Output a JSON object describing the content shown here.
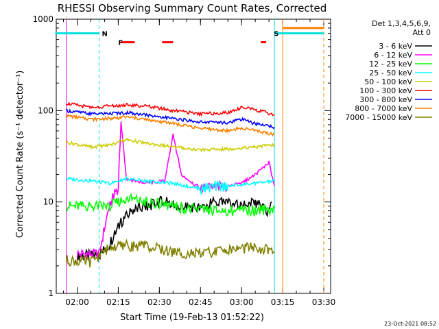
{
  "chart_data": {
    "type": "line",
    "title": "RHESSI Observing Summary Count Rates, Corrected",
    "xlabel": "Start Time (19-Feb-13 01:52:22)",
    "ylabel": "Corrected Count Rate (s⁻¹ detector⁻¹)",
    "y_scale": "log",
    "ylim": [
      1,
      1000
    ],
    "y_ticks": [
      {
        "value": 1,
        "label": "1"
      },
      {
        "value": 10,
        "label": "10"
      },
      {
        "value": 100,
        "label": "100"
      },
      {
        "value": 1000,
        "label": "1000"
      }
    ],
    "xlim": [
      "01:52:22",
      "03:32:30"
    ],
    "x_ticks": [
      "02:00",
      "02:15",
      "02:30",
      "02:45",
      "03:00",
      "03:15",
      "03:30"
    ],
    "legend_header": [
      "Det 1,3,4,5,6,9,",
      "Att 0"
    ],
    "legend_position": "top-right",
    "timestamp": "23-Oct-2021 08:52",
    "series": [
      {
        "name": "3 - 6 keV",
        "color": "#000000",
        "points": [
          [
            "02:00",
            2.6
          ],
          [
            "02:08",
            2.6
          ],
          [
            "02:12",
            3.5
          ],
          [
            "02:16",
            6
          ],
          [
            "02:20",
            8
          ],
          [
            "02:26",
            9
          ],
          [
            "02:32",
            10.5
          ],
          [
            "02:36",
            8.5
          ],
          [
            "02:40",
            9
          ],
          [
            "02:45",
            8.5
          ],
          [
            "02:50",
            10
          ],
          [
            "02:55",
            9.5
          ],
          [
            "03:00",
            9
          ],
          [
            "03:05",
            10
          ],
          [
            "03:10",
            7.5
          ],
          [
            "03:11",
            10
          ]
        ]
      },
      {
        "name": "6 - 12 keV",
        "color": "#ff00ff",
        "points": [
          [
            "02:00",
            2.7
          ],
          [
            "02:08",
            2.7
          ],
          [
            "02:12",
            10
          ],
          [
            "02:15",
            14
          ],
          [
            "02:16",
            75
          ],
          [
            "02:18",
            18
          ],
          [
            "02:25",
            16
          ],
          [
            "02:32",
            17
          ],
          [
            "02:35",
            55
          ],
          [
            "02:38",
            20
          ],
          [
            "02:45",
            14
          ],
          [
            "02:55",
            15
          ],
          [
            "03:00",
            16
          ],
          [
            "03:05",
            20
          ],
          [
            "03:10",
            27
          ],
          [
            "03:12",
            15
          ]
        ]
      },
      {
        "name": "12 - 25 keV",
        "color": "#00ff00",
        "points": [
          [
            "01:56",
            9
          ],
          [
            "02:05",
            9
          ],
          [
            "02:12",
            9
          ],
          [
            "02:18",
            11
          ],
          [
            "02:25",
            10
          ],
          [
            "02:35",
            9
          ],
          [
            "02:45",
            8
          ],
          [
            "02:55",
            8
          ],
          [
            "03:05",
            8
          ],
          [
            "03:12",
            8.5
          ]
        ]
      },
      {
        "name": "25 - 50 keV",
        "color": "#00ffff",
        "points": [
          [
            "01:56",
            18
          ],
          [
            "02:05",
            17
          ],
          [
            "02:12",
            16
          ],
          [
            "02:18",
            18
          ],
          [
            "02:25",
            17
          ],
          [
            "02:35",
            16
          ],
          [
            "02:45",
            14
          ],
          [
            "02:55",
            15
          ],
          [
            "03:05",
            16
          ],
          [
            "03:12",
            17
          ]
        ]
      },
      {
        "name": "50 - 100 keV",
        "color": "#cccc00",
        "points": [
          [
            "01:56",
            45
          ],
          [
            "02:05",
            40
          ],
          [
            "02:12",
            42
          ],
          [
            "02:18",
            48
          ],
          [
            "02:25",
            44
          ],
          [
            "02:35",
            40
          ],
          [
            "02:45",
            37
          ],
          [
            "02:55",
            38
          ],
          [
            "03:05",
            40
          ],
          [
            "03:12",
            42
          ]
        ]
      },
      {
        "name": "100 - 300 keV",
        "color": "#ff0000",
        "points": [
          [
            "01:56",
            120
          ],
          [
            "02:05",
            108
          ],
          [
            "02:12",
            112
          ],
          [
            "02:18",
            115
          ],
          [
            "02:25",
            112
          ],
          [
            "02:35",
            100
          ],
          [
            "02:45",
            92
          ],
          [
            "02:55",
            95
          ],
          [
            "03:00",
            108
          ],
          [
            "03:05",
            102
          ],
          [
            "03:12",
            90
          ]
        ]
      },
      {
        "name": "300 - 800 keV",
        "color": "#0000ff",
        "points": [
          [
            "01:56",
            100
          ],
          [
            "02:05",
            92
          ],
          [
            "02:12",
            93
          ],
          [
            "02:18",
            95
          ],
          [
            "02:25",
            90
          ],
          [
            "02:35",
            82
          ],
          [
            "02:45",
            75
          ],
          [
            "02:55",
            74
          ],
          [
            "03:00",
            80
          ],
          [
            "03:05",
            72
          ],
          [
            "03:12",
            66
          ]
        ]
      },
      {
        "name": "800 - 7000 keV",
        "color": "#ff8000",
        "points": [
          [
            "01:56",
            88
          ],
          [
            "02:05",
            80
          ],
          [
            "02:12",
            82
          ],
          [
            "02:18",
            85
          ],
          [
            "02:25",
            80
          ],
          [
            "02:35",
            72
          ],
          [
            "02:45",
            64
          ],
          [
            "02:55",
            60
          ],
          [
            "03:00",
            65
          ],
          [
            "03:05",
            60
          ],
          [
            "03:12",
            55
          ]
        ]
      },
      {
        "name": "7000 - 15000 keV",
        "color": "#808000",
        "points": [
          [
            "01:56",
            2.3
          ],
          [
            "02:05",
            2.2
          ],
          [
            "02:12",
            3.2
          ],
          [
            "02:18",
            3.3
          ],
          [
            "02:25",
            3.3
          ],
          [
            "02:35",
            2.8
          ],
          [
            "02:45",
            2.7
          ],
          [
            "02:55",
            3.0
          ],
          [
            "03:05",
            3.2
          ],
          [
            "03:12",
            2.8
          ]
        ]
      }
    ],
    "flags": [
      {
        "label": "N",
        "color": "#00e0e0",
        "time": "02:08",
        "top": 700
      },
      {
        "label": "F",
        "color": "#ff0000",
        "time": "02:14",
        "top": 560
      },
      {
        "label": "S",
        "color": "#00e0e0",
        "time": "03:12",
        "top": 700
      }
    ],
    "night_segments": [
      {
        "start": "01:52",
        "end": "02:08",
        "value": 700,
        "color": "#00e0e0"
      },
      {
        "start": "03:12",
        "end": "03:30",
        "value": 700,
        "color": "#00e0e0"
      }
    ],
    "flare_segments": [
      {
        "start": "02:16",
        "end": "02:21",
        "value": 560,
        "color": "#ff0000"
      },
      {
        "start": "02:31",
        "end": "02:35",
        "value": 560,
        "color": "#ff0000"
      },
      {
        "start": "03:07",
        "end": "03:09",
        "value": 560,
        "color": "#ff0000"
      }
    ],
    "saa_segments": [
      {
        "start": "03:15",
        "end": "03:30",
        "value": 800,
        "color": "#ff8000"
      }
    ],
    "vertical_markers": [
      {
        "time": "01:56",
        "color": "#ff00ff",
        "style": "solid"
      },
      {
        "time": "02:08",
        "color": "#00e0e0",
        "style": "dashed"
      },
      {
        "time": "03:12",
        "color": "#00e0e0",
        "style": "solid"
      },
      {
        "time": "03:15",
        "color": "#ff8000",
        "style": "solid"
      },
      {
        "time": "03:30",
        "color": "#ff8000",
        "style": "dashed"
      }
    ]
  }
}
